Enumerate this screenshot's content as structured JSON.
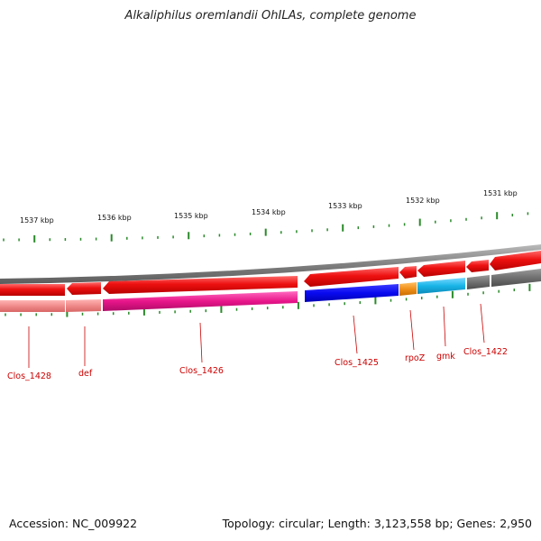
{
  "title": "Alkaliphilus oremlandii OhILAs, complete genome",
  "footer": {
    "accession": "Accession: NC_009922",
    "topology": "Topology: circular; Length: 3,123,558 bp; Genes: 2,950"
  },
  "scale": {
    "labels": [
      "1537 kbp",
      "1536 kbp",
      "1535 kbp",
      "1534 kbp",
      "1533 kbp",
      "1532 kbp",
      "1531 kbp"
    ]
  },
  "genes": [
    {
      "name": "Clos_1428",
      "label": "Clos_1428"
    },
    {
      "name": "def",
      "label": "def"
    },
    {
      "name": "Clos_1426",
      "label": "Clos_1426"
    },
    {
      "name": "Clos_1425",
      "label": "Clos_1425"
    },
    {
      "name": "rpoZ",
      "label": "rpoZ"
    },
    {
      "name": "gmk",
      "label": "gmk"
    },
    {
      "name": "Clos_1422",
      "label": "Clos_1422"
    }
  ],
  "colors": {
    "cds_forward": "#ee1111",
    "backbone": "#888888",
    "label_red": "#cc0000",
    "tick_green": "#2a8a2a",
    "cog_pink": "#f08a8a",
    "cog_magenta": "#e8168a",
    "cog_blue": "#0a0af0",
    "cog_orange": "#f0901a",
    "cog_cyan": "#19b5e8",
    "cog_grey": "#707070"
  }
}
